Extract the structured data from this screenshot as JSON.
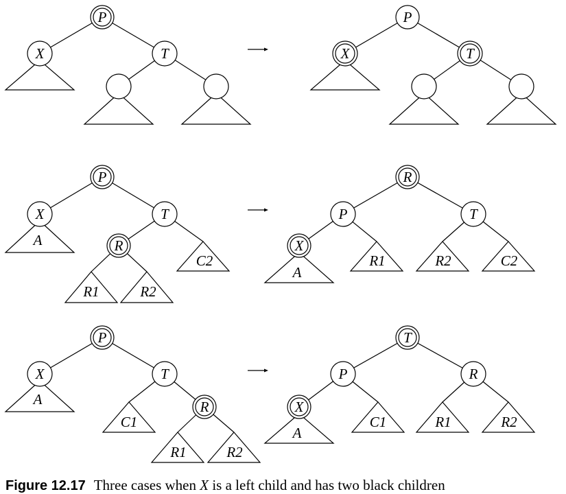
{
  "cases": [
    {
      "before": {
        "nodes": {
          "P": "P",
          "X": "X",
          "T": "T",
          "L": "",
          "Rn": ""
        },
        "subtrees": {
          "X": "",
          "L": "",
          "Rn": ""
        }
      },
      "after": {
        "nodes": {
          "P": "P",
          "X": "X",
          "T": "T",
          "L": "",
          "Rn": ""
        },
        "subtrees": {
          "X": "",
          "L": "",
          "Rn": ""
        }
      }
    },
    {
      "before": {
        "nodes": {
          "P": "P",
          "X": "X",
          "T": "T",
          "R": "R"
        },
        "subtrees": {
          "A": "A",
          "C2": "C2",
          "R1": "R1",
          "R2": "R2"
        }
      },
      "after": {
        "nodes": {
          "R": "R",
          "P": "P",
          "T": "T",
          "X": "X"
        },
        "subtrees": {
          "A": "A",
          "R1": "R1",
          "R2": "R2",
          "C2": "C2"
        }
      }
    },
    {
      "before": {
        "nodes": {
          "P": "P",
          "X": "X",
          "T": "T",
          "R": "R"
        },
        "subtrees": {
          "A": "A",
          "C1": "C1",
          "R1": "R1",
          "R2": "R2"
        }
      },
      "after": {
        "nodes": {
          "T": "T",
          "P": "P",
          "R": "R",
          "X": "X"
        },
        "subtrees": {
          "A": "A",
          "C1": "C1",
          "R1": "R1",
          "R2": "R2"
        }
      }
    }
  ],
  "caption": {
    "figure_number": "Figure 12.17",
    "text_before": "Three cases when",
    "variable": "X",
    "text_after": "is a left child and has two black children"
  }
}
